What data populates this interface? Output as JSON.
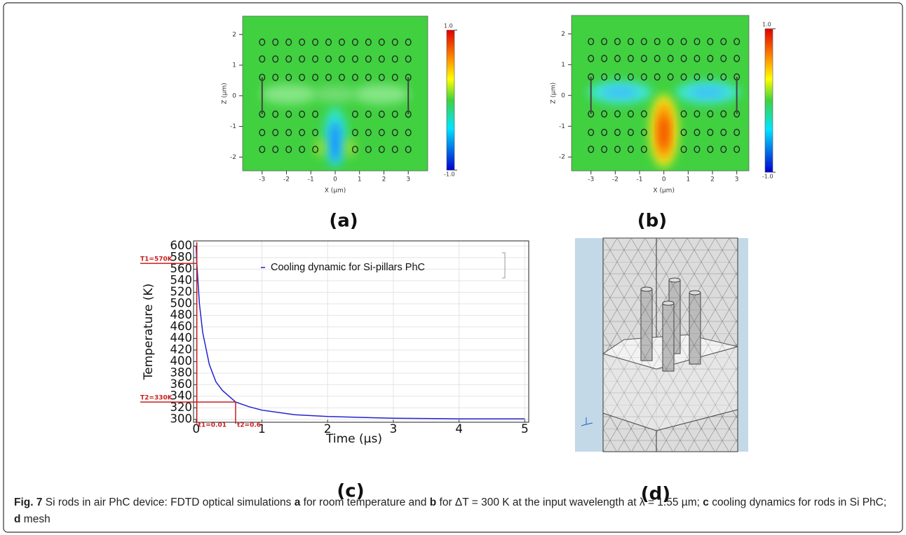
{
  "chart_data": [
    {
      "type": "field-map",
      "label": "(a)",
      "xlabel": "X (µm)",
      "ylabel": "Z (µm)",
      "xlim": [
        -3.8,
        3.8
      ],
      "ylim": [
        -2.45,
        2.6
      ],
      "xticks": [
        -3,
        -2,
        -1,
        0,
        1,
        2,
        3
      ],
      "yticks": [
        -2,
        -1,
        0,
        1,
        2
      ],
      "clim": [
        -1,
        1
      ],
      "cticks": [
        {
          "value": 1,
          "label": "1.0"
        },
        {
          "value": -1,
          "label": "-1.0"
        }
      ]
    },
    {
      "type": "field-map",
      "label": "(b)",
      "xlabel": "X (µm)",
      "ylabel": "Z (µm)",
      "xlim": [
        -3.8,
        3.5
      ],
      "ylim": [
        -2.45,
        2.6
      ],
      "xticks": [
        -3,
        -2,
        -1,
        0,
        1,
        2,
        3
      ],
      "yticks": [
        -2,
        -1,
        0,
        1,
        2
      ],
      "clim": [
        -1,
        1
      ],
      "cticks": [
        {
          "value": 1,
          "label": "1.0"
        },
        {
          "value": -1,
          "label": "-1.0"
        }
      ]
    },
    {
      "type": "line",
      "label": "(c)",
      "xlabel": "Time (µs)",
      "ylabel": "Temperature (K)",
      "x": [
        0,
        0.01,
        0.05,
        0.1,
        0.2,
        0.3,
        0.4,
        0.6,
        0.8,
        1,
        1.5,
        2,
        3,
        4,
        5
      ],
      "series": [
        {
          "name": "Cooling dynamic for Si-pillars PhC",
          "color": "#2323d0",
          "values": [
            600,
            570,
            500,
            450,
            395,
            365,
            350,
            330,
            322,
            316,
            308,
            305,
            302,
            301,
            301
          ]
        }
      ],
      "xlim": [
        -0.04,
        5.06
      ],
      "ylim": [
        295,
        609
      ],
      "xticks": [
        0,
        1,
        2,
        3,
        4,
        5
      ],
      "yticks": [
        300,
        320,
        340,
        360,
        380,
        400,
        420,
        440,
        460,
        480,
        500,
        520,
        540,
        560,
        580,
        600
      ],
      "grid": true,
      "annotations": [
        {
          "text": "T1=570K",
          "y": 570,
          "x": 0.01
        },
        {
          "text": "T2=330K",
          "y": 330,
          "x": 0.6
        },
        {
          "text": "t1=0.01",
          "x": 0.01
        },
        {
          "text": "t2=0.6",
          "x": 0.6
        }
      ]
    },
    {
      "type": "mesh",
      "label": "(d)"
    }
  ],
  "caption": {
    "figure": "Fig. 7",
    "segments": [
      "Si rods in air PhC device: FDTD optical simulations",
      "a",
      "for room temperature and",
      "b",
      "for ΔT = 300 K at the input wavelength at λ = 1.55 µm;",
      "c",
      "cooling dynamics for rods in Si PhC;",
      "d",
      "mesh"
    ]
  }
}
